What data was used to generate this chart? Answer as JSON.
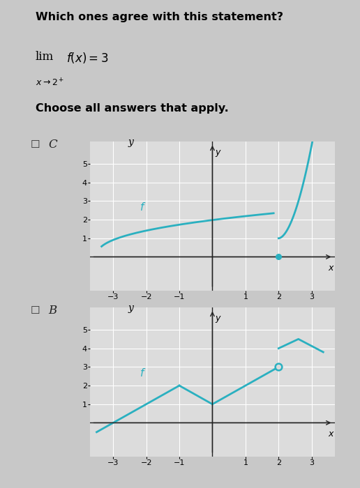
{
  "title": "Which ones agree with this statement?",
  "bg_color": "#c8c8c8",
  "graph_bg": "#dcdcdc",
  "curve_color": "#2ab0c0",
  "xlim": [
    -3.7,
    3.7
  ],
  "ylim": [
    -1.8,
    6.2
  ],
  "xticks": [
    -3,
    -2,
    -1,
    1,
    2,
    3
  ],
  "yticks": [
    1,
    2,
    3,
    4,
    5
  ],
  "grid_color": "#ffffff",
  "axis_color": "#222222",
  "tick_fontsize": 8,
  "label_fontsize": 9
}
